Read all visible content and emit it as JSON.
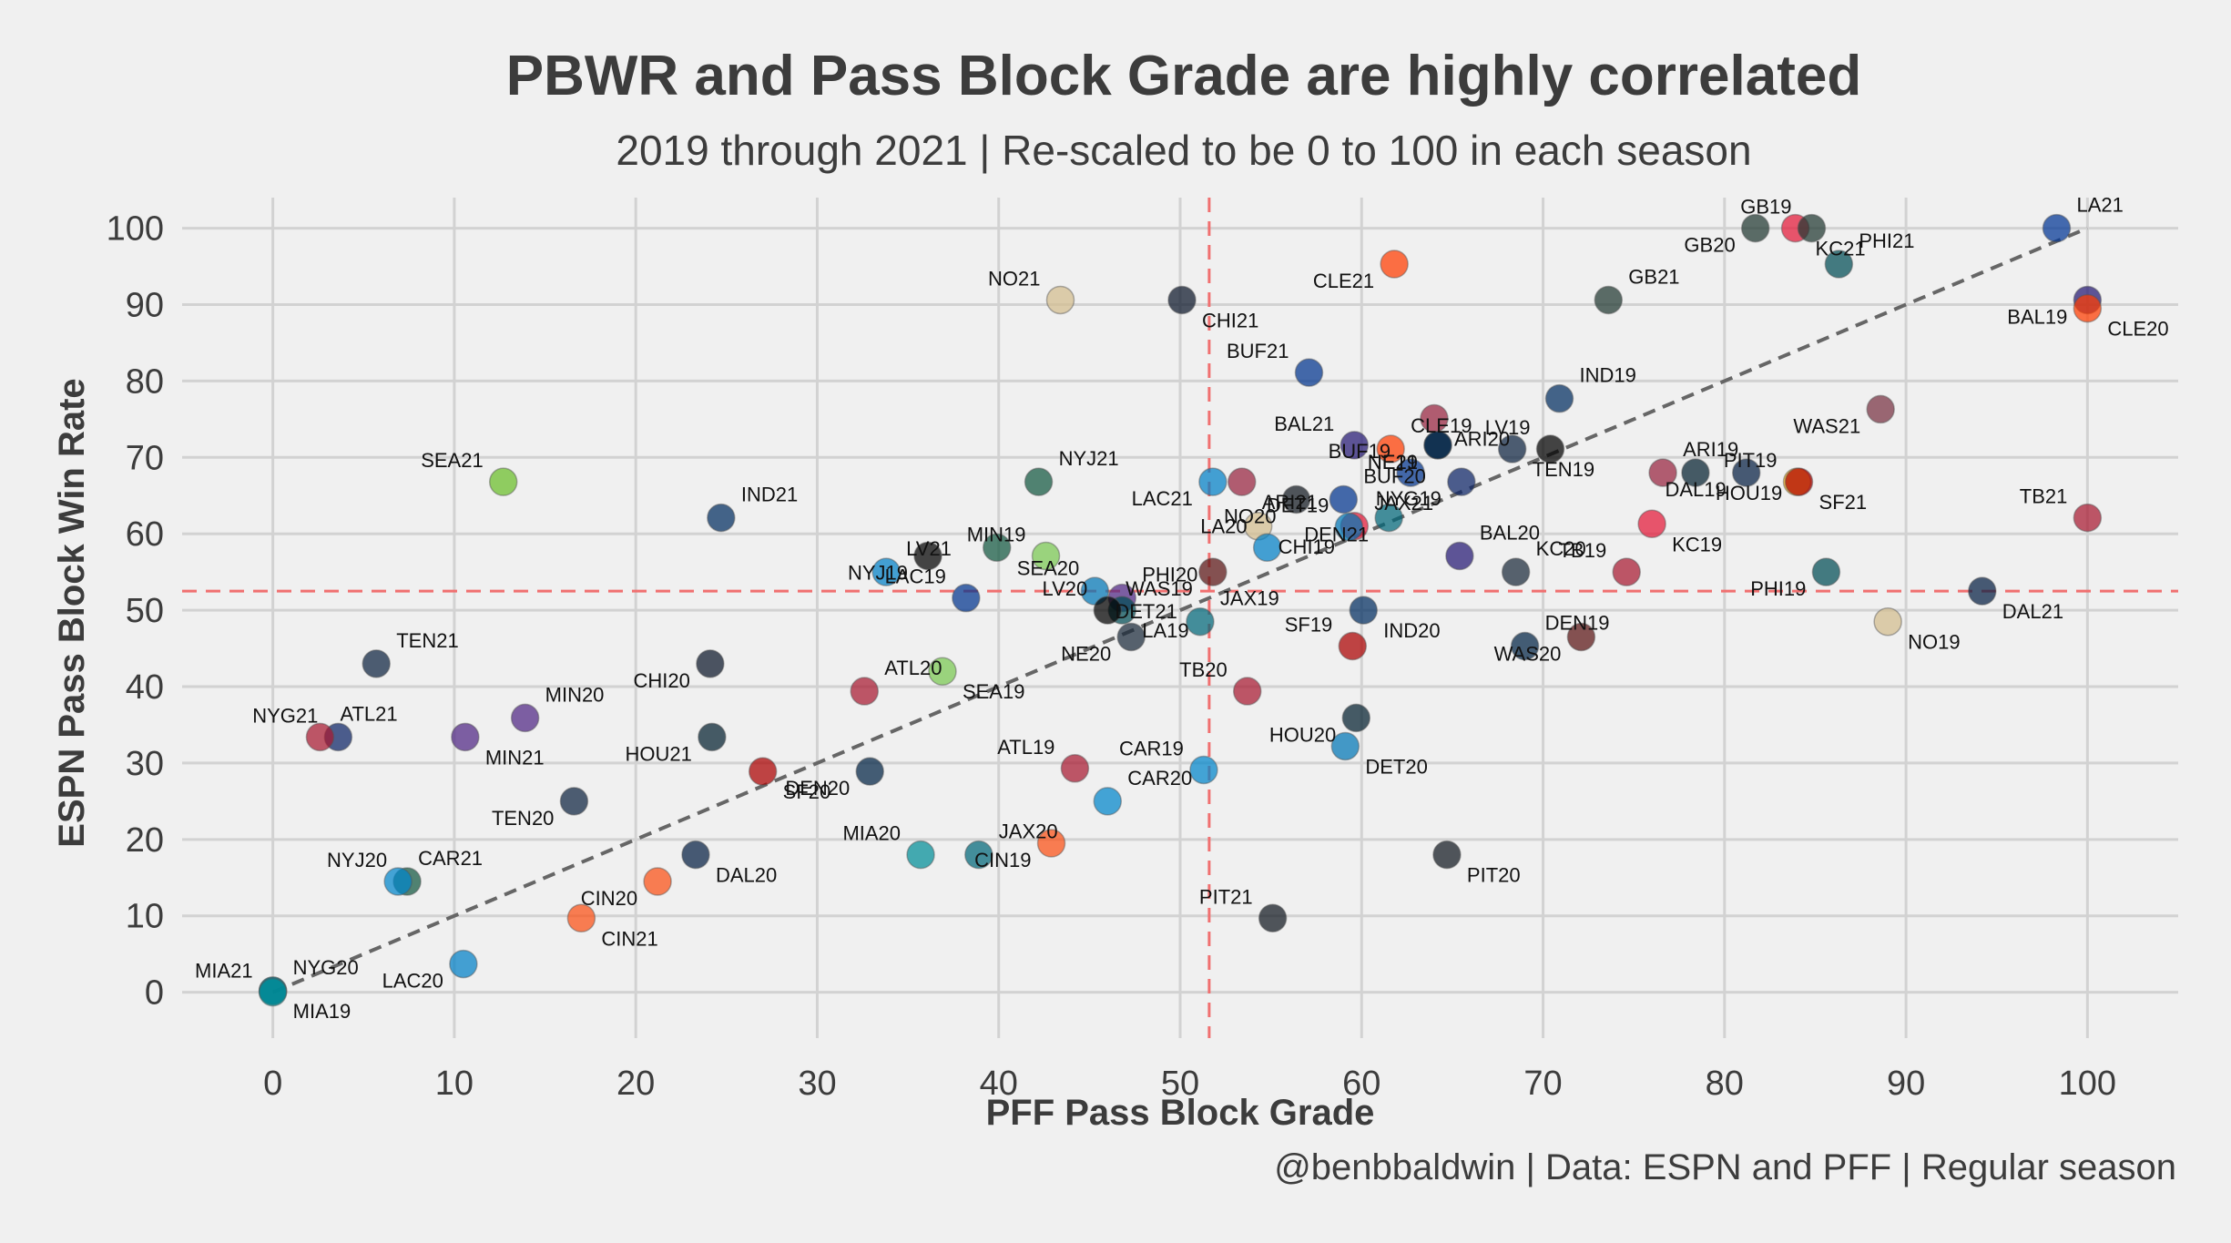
{
  "chart_data": {
    "type": "scatter",
    "title": "PBWR and Pass Block Grade are highly correlated",
    "subtitle": "2019 through 2021 | Re-scaled to be 0 to 100 in each season",
    "caption": "@benbbaldwin | Data: ESPN and PFF | Regular season",
    "xlabel": "PFF Pass Block Grade",
    "ylabel": "ESPN Pass Block Win Rate",
    "xlim": [
      -5,
      105
    ],
    "ylim": [
      -6,
      104
    ],
    "xticks": [
      0,
      10,
      20,
      30,
      40,
      50,
      60,
      70,
      80,
      90,
      100
    ],
    "yticks": [
      0,
      10,
      20,
      30,
      40,
      50,
      60,
      70,
      80,
      90,
      100
    ],
    "x_mean": 51.6,
    "y_mean": 52.5,
    "trend_line": [
      [
        0,
        0
      ],
      [
        100,
        100
      ]
    ],
    "points": [
      {
        "label": "LA21",
        "x": 98.3,
        "y": 100.0,
        "color": "#003594"
      },
      {
        "label": "GB20",
        "x": 81.7,
        "y": 100.0,
        "color": "#203731"
      },
      {
        "label": "KC21",
        "x": 83.9,
        "y": 100.0,
        "color": "#E31837"
      },
      {
        "label": "GB19",
        "x": 84.8,
        "y": 100.0,
        "color": "#203731"
      },
      {
        "label": "PHI21",
        "x": 86.3,
        "y": 95.3,
        "color": "#004C54"
      },
      {
        "label": "CLE21",
        "x": 61.8,
        "y": 95.3,
        "color": "#FF3C00"
      },
      {
        "label": "CHI21",
        "x": 50.1,
        "y": 90.6,
        "color": "#0B162A"
      },
      {
        "label": "NO21",
        "x": 43.4,
        "y": 90.6,
        "color": "#D3BC8D"
      },
      {
        "label": "GB21",
        "x": 73.6,
        "y": 90.6,
        "color": "#203731"
      },
      {
        "label": "BAL19",
        "x": 100.0,
        "y": 90.6,
        "color": "#241773"
      },
      {
        "label": "CLE20",
        "x": 100.0,
        "y": 89.5,
        "color": "#FF3C00"
      },
      {
        "label": "BUF21",
        "x": 57.1,
        "y": 81.1,
        "color": "#00338D"
      },
      {
        "label": "IND19",
        "x": 70.9,
        "y": 77.7,
        "color": "#002C5F"
      },
      {
        "label": "WAS21",
        "x": 88.6,
        "y": 76.3,
        "color": "#773141"
      },
      {
        "label": "ARI20",
        "x": 64.0,
        "y": 75.1,
        "color": "#97233F"
      },
      {
        "label": "BAL21",
        "x": 59.6,
        "y": 71.6,
        "color": "#241773"
      },
      {
        "label": "CLE19",
        "x": 61.6,
        "y": 71.1,
        "color": "#FF3C00"
      },
      {
        "label": "NE21",
        "x": 64.2,
        "y": 71.6,
        "color": "#002244"
      },
      {
        "label": "TEN19",
        "x": 68.3,
        "y": 71.1,
        "color": "#0C2340"
      },
      {
        "label": "LV19",
        "x": 70.4,
        "y": 71.1,
        "color": "#000000"
      },
      {
        "label": "NYJ21",
        "x": 42.2,
        "y": 66.8,
        "color": "#125740"
      },
      {
        "label": "LAC21",
        "x": 51.8,
        "y": 66.8,
        "color": "#0080C6"
      },
      {
        "label": "ARI21",
        "x": 53.4,
        "y": 66.8,
        "color": "#97233F"
      },
      {
        "label": "BUF19",
        "x": 62.7,
        "y": 68.0,
        "color": "#00338D"
      },
      {
        "label": "BUF20",
        "x": 59.0,
        "y": 64.5,
        "color": "#00338D"
      },
      {
        "label": "NYG19",
        "x": 65.5,
        "y": 66.8,
        "color": "#0B2265"
      },
      {
        "label": "HOU19",
        "x": 78.4,
        "y": 68.0,
        "color": "#03202F"
      },
      {
        "label": "PIT19",
        "x": 84.0,
        "y": 66.8,
        "color": "#FFB612"
      },
      {
        "label": "ARI19",
        "x": 76.6,
        "y": 68.0,
        "color": "#97233F"
      },
      {
        "label": "DAL19",
        "x": 81.2,
        "y": 68.0,
        "color": "#041E42"
      },
      {
        "label": "SF21",
        "x": 84.1,
        "y": 66.8,
        "color": "#AA0000"
      },
      {
        "label": "SEA21",
        "x": 12.7,
        "y": 66.8,
        "color": "#69BE28"
      },
      {
        "label": "IND21",
        "x": 24.7,
        "y": 62.1,
        "color": "#002C5F"
      },
      {
        "label": "NO20",
        "x": 56.4,
        "y": 64.5,
        "color": "#101820"
      },
      {
        "label": "CHI19",
        "x": 54.3,
        "y": 61.0,
        "color": "#D3BC8D"
      },
      {
        "label": "LA20",
        "x": 54.8,
        "y": 58.2,
        "color": "#0080C6"
      },
      {
        "label": "JAX21",
        "x": 59.6,
        "y": 61.0,
        "color": "#E31837"
      },
      {
        "label": "DEN21",
        "x": 61.5,
        "y": 62.1,
        "color": "#006778"
      },
      {
        "label": "KC19",
        "x": 76.0,
        "y": 61.3,
        "color": "#E31837"
      },
      {
        "label": "TB19",
        "x": 74.6,
        "y": 55.0,
        "color": "#A71930"
      },
      {
        "label": "BAL20",
        "x": 65.4,
        "y": 57.1,
        "color": "#241773"
      },
      {
        "label": "NYJ19",
        "x": 36.1,
        "y": 57.1,
        "color": "#000000"
      },
      {
        "label": "SEA20",
        "x": 39.9,
        "y": 58.2,
        "color": "#125740"
      },
      {
        "label": "MIN19",
        "x": 42.6,
        "y": 57.1,
        "color": "#78C850"
      },
      {
        "label": "LV21",
        "x": 33.8,
        "y": 55.0,
        "color": "#0080C6"
      },
      {
        "label": "PHI19",
        "x": 85.6,
        "y": 55.0,
        "color": "#004C54"
      },
      {
        "label": "DAL21",
        "x": 94.2,
        "y": 52.5,
        "color": "#041E42"
      },
      {
        "label": "DET19",
        "x": 59.3,
        "y": 60.9,
        "color": "#0076B6"
      },
      {
        "label": "KC20",
        "x": 68.5,
        "y": 55.0,
        "color": "#1B2A3A"
      },
      {
        "label": "NE19",
        "x": 64.2,
        "y": 71.6,
        "color": "#002244"
      },
      {
        "label": "DET21",
        "x": 45.3,
        "y": 52.5,
        "color": "#0076B6"
      },
      {
        "label": "LAC19",
        "x": 38.2,
        "y": 51.6,
        "color": "#00338D"
      },
      {
        "label": "PHI20",
        "x": 46.8,
        "y": 51.6,
        "color": "#4F2683"
      },
      {
        "label": "WAS19",
        "x": 51.8,
        "y": 55.0,
        "color": "#5A1414"
      },
      {
        "label": "LA19",
        "x": 46.8,
        "y": 50.0,
        "color": "#004C54"
      },
      {
        "label": "LV20",
        "x": 46.0,
        "y": 50.0,
        "color": "#000000"
      },
      {
        "label": "JAX19",
        "x": 51.1,
        "y": 48.5,
        "color": "#006778"
      },
      {
        "label": "NE20",
        "x": 47.3,
        "y": 46.5,
        "color": "#1B2A3A"
      },
      {
        "label": "IND20",
        "x": 60.1,
        "y": 50.0,
        "color": "#002C5F"
      },
      {
        "label": "SF19",
        "x": 59.5,
        "y": 45.3,
        "color": "#AA0000"
      },
      {
        "label": "DEN19",
        "x": 69.0,
        "y": 45.3,
        "color": "#002244"
      },
      {
        "label": "WAS20",
        "x": 72.1,
        "y": 46.5,
        "color": "#5A1414"
      },
      {
        "label": "NO19",
        "x": 89.0,
        "y": 48.5,
        "color": "#D3BC8D"
      },
      {
        "label": "TB21",
        "x": 100.0,
        "y": 62.1,
        "color": "#A71930"
      },
      {
        "label": "TEN21",
        "x": 5.7,
        "y": 43.0,
        "color": "#0C2340"
      },
      {
        "label": "CHI20",
        "x": 24.1,
        "y": 43.0,
        "color": "#0B162A"
      },
      {
        "label": "SEA19",
        "x": 36.9,
        "y": 42.0,
        "color": "#78C850"
      },
      {
        "label": "TB20",
        "x": 53.7,
        "y": 39.4,
        "color": "#A71930"
      },
      {
        "label": "ATL20",
        "x": 32.6,
        "y": 39.4,
        "color": "#A71930"
      },
      {
        "label": "HOU20",
        "x": 59.7,
        "y": 35.9,
        "color": "#03202F"
      },
      {
        "label": "DET20",
        "x": 59.1,
        "y": 32.2,
        "color": "#0076B6"
      },
      {
        "label": "CAR19",
        "x": 51.3,
        "y": 29.1,
        "color": "#0085CA"
      },
      {
        "label": "MIN20",
        "x": 13.9,
        "y": 35.9,
        "color": "#4F2683"
      },
      {
        "label": "HOU21",
        "x": 24.2,
        "y": 33.4,
        "color": "#03202F"
      },
      {
        "label": "MIN21",
        "x": 10.6,
        "y": 33.4,
        "color": "#4F2683"
      },
      {
        "label": "NYG21",
        "x": 3.6,
        "y": 33.4,
        "color": "#0B2265"
      },
      {
        "label": "ATL21",
        "x": 2.6,
        "y": 33.4,
        "color": "#A71930"
      },
      {
        "label": "DEN20",
        "x": 32.9,
        "y": 28.9,
        "color": "#002244"
      },
      {
        "label": "SF20",
        "x": 27.0,
        "y": 28.9,
        "color": "#AA0000"
      },
      {
        "label": "ATL19",
        "x": 44.2,
        "y": 29.3,
        "color": "#A71930"
      },
      {
        "label": "CAR20",
        "x": 46.0,
        "y": 25.0,
        "color": "#0085CA"
      },
      {
        "label": "TEN20",
        "x": 16.6,
        "y": 25.0,
        "color": "#0C2340"
      },
      {
        "label": "DAL20",
        "x": 23.3,
        "y": 18.0,
        "color": "#041E42"
      },
      {
        "label": "MIA20",
        "x": 35.7,
        "y": 18.0,
        "color": "#008E97"
      },
      {
        "label": "JAX20",
        "x": 38.9,
        "y": 18.0,
        "color": "#006778"
      },
      {
        "label": "CIN19",
        "x": 42.9,
        "y": 19.5,
        "color": "#FB4F14"
      },
      {
        "label": "PIT20",
        "x": 64.7,
        "y": 18.0,
        "color": "#101820"
      },
      {
        "label": "NYJ20",
        "x": 7.4,
        "y": 14.5,
        "color": "#125740"
      },
      {
        "label": "CAR21",
        "x": 6.9,
        "y": 14.5,
        "color": "#0085CA"
      },
      {
        "label": "CIN20",
        "x": 21.2,
        "y": 14.5,
        "color": "#FB4F14"
      },
      {
        "label": "CIN21",
        "x": 17.0,
        "y": 9.7,
        "color": "#FB4F14"
      },
      {
        "label": "PIT21",
        "x": 55.1,
        "y": 9.7,
        "color": "#101820"
      },
      {
        "label": "NYG20",
        "x": 0.0,
        "y": 0.2,
        "color": "#0B2265"
      },
      {
        "label": "LAC20",
        "x": 10.5,
        "y": 3.7,
        "color": "#0080C6"
      },
      {
        "label": "MIA19",
        "x": 0.0,
        "y": 0.2,
        "color": "#008E97"
      },
      {
        "label": "MIA21",
        "x": 0.0,
        "y": 0.0,
        "color": "#008E97"
      }
    ]
  }
}
